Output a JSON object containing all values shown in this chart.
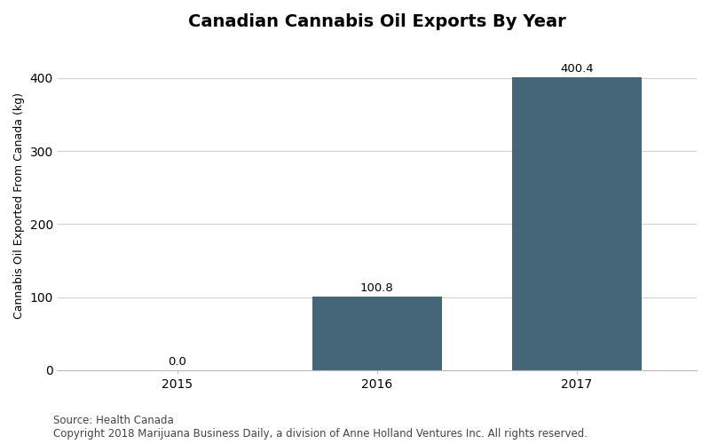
{
  "title": "Canadian Cannabis Oil Exports By Year",
  "categories": [
    "2015",
    "2016",
    "2017"
  ],
  "values": [
    0.0,
    100.8,
    400.4
  ],
  "bar_color": "#456678",
  "ylabel": "Cannabis Oil Exported From Canada (kg)",
  "ylim": [
    0,
    450
  ],
  "yticks": [
    0,
    100,
    200,
    300,
    400
  ],
  "title_fontsize": 14,
  "label_fontsize": 9,
  "tick_fontsize": 10,
  "bar_width": 0.65,
  "source_text": "Source: Health Canada\nCopyright 2018 Marijuana Business Daily, a division of Anne Holland Ventures Inc. All rights reserved.",
  "source_fontsize": 8.5,
  "background_color": "#ffffff",
  "grid_color": "#d0d0d0",
  "annotation_fontsize": 9.5
}
